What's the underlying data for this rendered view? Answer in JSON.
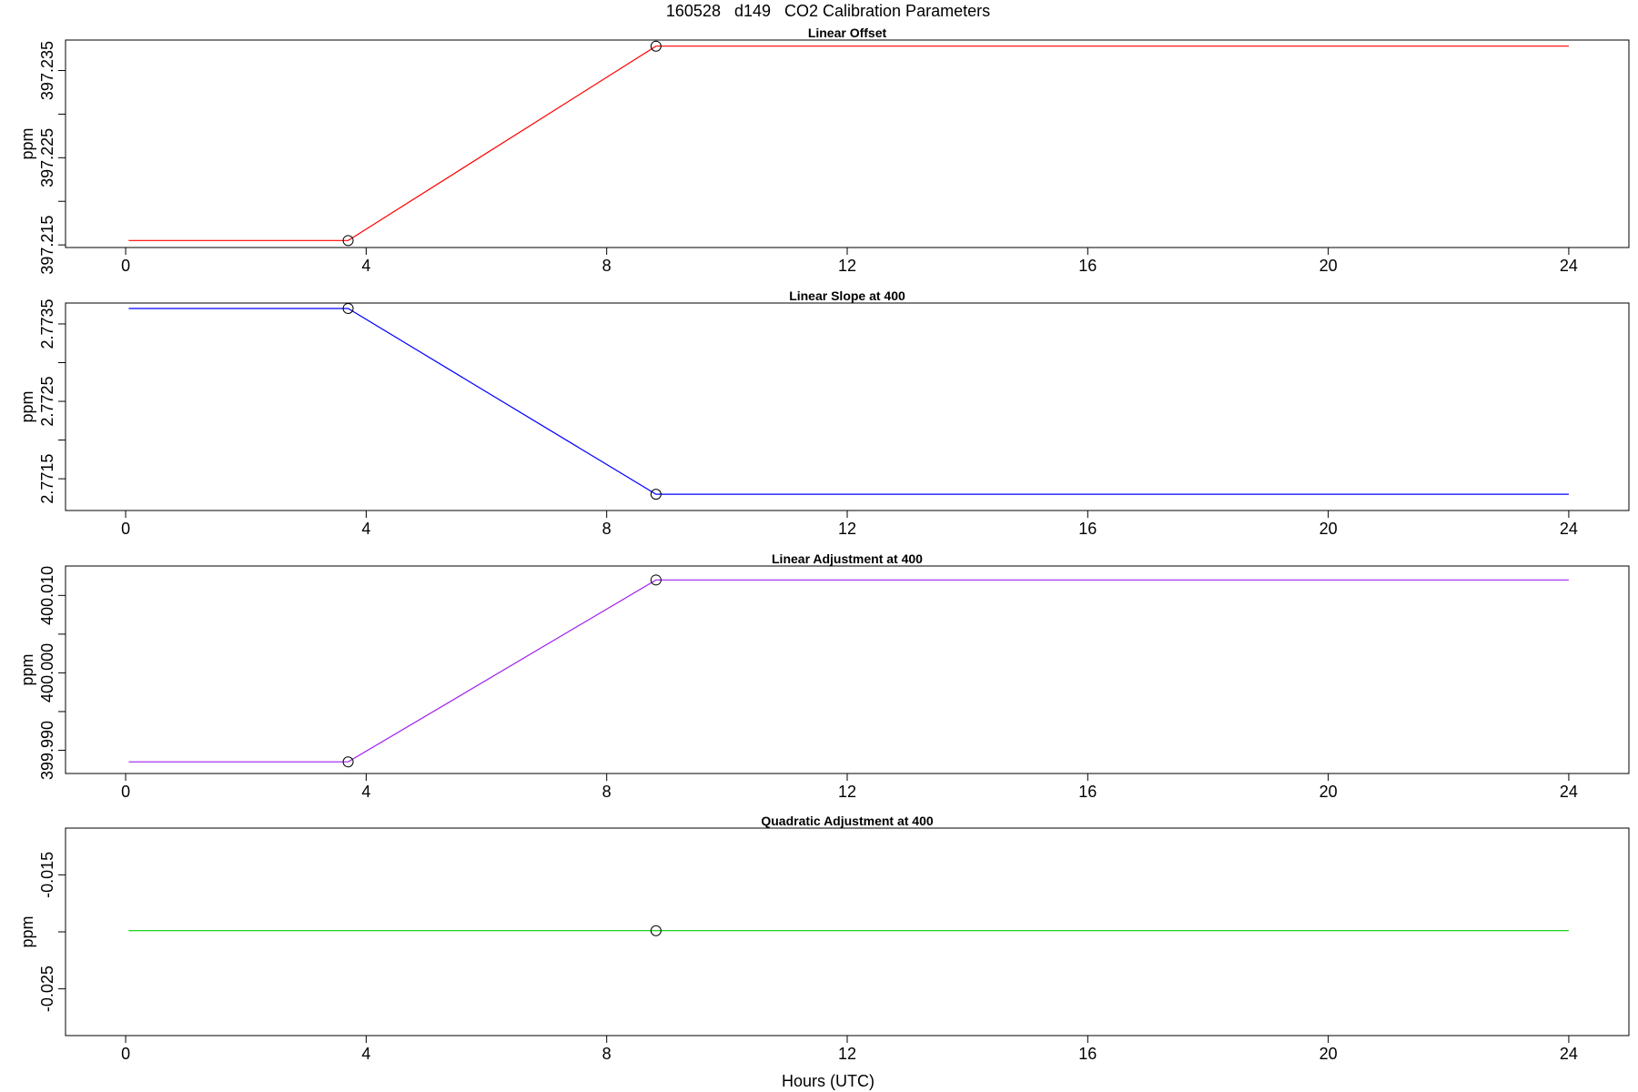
{
  "figure_title": "160528   d149   CO2 Calibration Parameters",
  "x_axis_label": "Hours (UTC)",
  "chart_data": [
    {
      "type": "line",
      "title": "Linear Offset",
      "xlabel": "",
      "ylabel": "ppm",
      "xlim": [
        -1.0,
        25.0
      ],
      "ylim": [
        397.2147,
        397.2385
      ],
      "x_ticks": [
        "0",
        "4",
        "8",
        "12",
        "16",
        "20",
        "24"
      ],
      "y_ticks": [
        397.215,
        397.225,
        397.235
      ],
      "y_tick_labels": [
        "397.215",
        "397.225",
        "397.235"
      ],
      "y_minor_ticks": [
        397.22,
        397.23
      ],
      "color": "#ff0000",
      "x": [
        0.05,
        3.7,
        8.82,
        24.0
      ],
      "y": [
        397.2155,
        397.2155,
        397.2378,
        397.2378
      ],
      "markers": [
        {
          "x": 3.7,
          "y": 397.2155
        },
        {
          "x": 8.82,
          "y": 397.2378
        }
      ]
    },
    {
      "type": "line",
      "title": "Linear Slope at 400",
      "xlabel": "",
      "ylabel": "ppm",
      "xlim": [
        -1.0,
        25.0
      ],
      "ylim": [
        2.77109,
        2.77377
      ],
      "x_ticks": [
        "0",
        "4",
        "8",
        "12",
        "16",
        "20",
        "24"
      ],
      "y_ticks": [
        2.7715,
        2.7725,
        2.7735
      ],
      "y_tick_labels": [
        "2.7715",
        "2.7725",
        "2.7735"
      ],
      "y_minor_ticks": [
        2.772,
        2.773
      ],
      "color": "#0000ff",
      "x": [
        0.05,
        3.7,
        8.82,
        24.0
      ],
      "y": [
        2.7737,
        2.7737,
        2.7713,
        2.7713
      ],
      "markers": [
        {
          "x": 3.7,
          "y": 2.7737
        },
        {
          "x": 8.82,
          "y": 2.7713
        }
      ]
    },
    {
      "type": "line",
      "title": "Linear Adjustment at 400",
      "xlabel": "",
      "ylabel": "ppm",
      "xlim": [
        -1.0,
        25.0
      ],
      "ylim": [
        399.987,
        400.0138
      ],
      "x_ticks": [
        "0",
        "4",
        "8",
        "12",
        "16",
        "20",
        "24"
      ],
      "y_ticks": [
        399.99,
        400.0,
        400.01
      ],
      "y_tick_labels": [
        "399.990",
        "400.000",
        "400.010"
      ],
      "y_minor_ticks": [
        399.995,
        400.005
      ],
      "color": "#a020f0",
      "x": [
        0.05,
        3.7,
        8.82,
        24.0
      ],
      "y": [
        399.9885,
        399.9885,
        400.012,
        400.012
      ],
      "markers": [
        {
          "x": 3.7,
          "y": 399.9885
        },
        {
          "x": 8.82,
          "y": 400.012
        }
      ]
    },
    {
      "type": "line",
      "title": "Quadratic Adjustment at 400",
      "xlabel": "Hours (UTC)",
      "ylabel": "ppm",
      "xlim": [
        -1.0,
        25.0
      ],
      "ylim": [
        -0.0291,
        -0.0109
      ],
      "x_ticks": [
        "0",
        "4",
        "8",
        "12",
        "16",
        "20",
        "24"
      ],
      "y_ticks": [
        -0.025,
        -0.015
      ],
      "y_tick_labels": [
        "-0.025",
        "-0.015"
      ],
      "y_minor_ticks": [
        -0.02
      ],
      "color": "#00cd00",
      "x": [
        0.05,
        24.0
      ],
      "y": [
        -0.0199,
        -0.0199
      ],
      "markers": [
        {
          "x": 8.82,
          "y": -0.0199
        }
      ]
    }
  ]
}
